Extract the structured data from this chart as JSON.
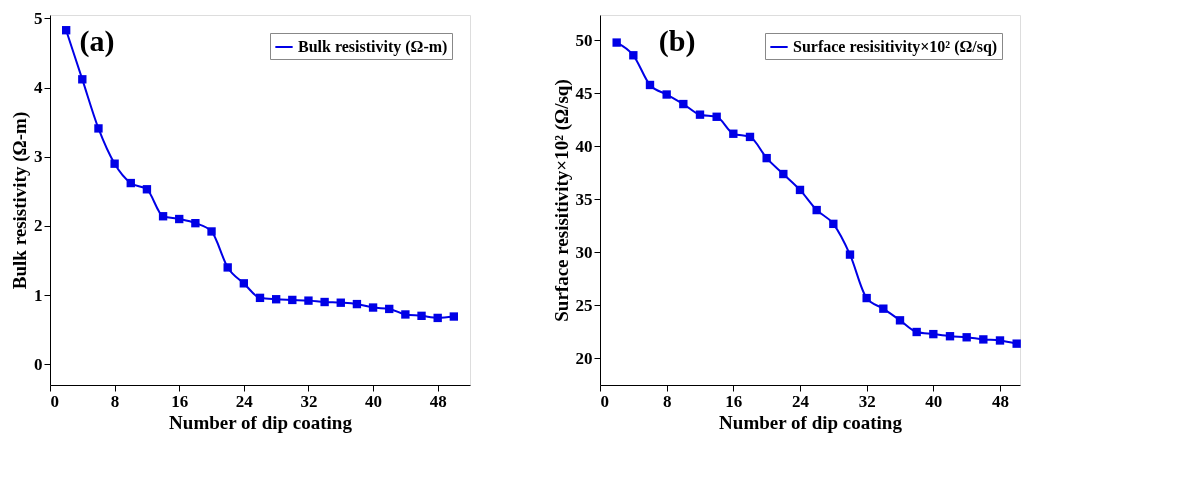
{
  "chart_data": [
    {
      "type": "line",
      "xlabel": "Number of dip coating",
      "ylabel": "Bulk resistivity (Ω-m)",
      "annotations": [
        "(a)"
      ],
      "x": [
        2,
        4,
        6,
        8,
        10,
        12,
        14,
        16,
        18,
        20,
        22,
        24,
        26,
        28,
        30,
        32,
        34,
        36,
        38,
        40,
        42,
        44,
        46,
        48,
        50
      ],
      "series": [
        {
          "name": "Bulk resistivity (Ω-m)",
          "color": "#0000e6",
          "values": [
            4.83,
            4.12,
            3.41,
            2.9,
            2.62,
            2.53,
            2.14,
            2.1,
            2.04,
            1.92,
            1.4,
            1.17,
            0.96,
            0.94,
            0.93,
            0.92,
            0.9,
            0.89,
            0.87,
            0.82,
            0.8,
            0.72,
            0.7,
            0.67,
            0.69
          ]
        }
      ],
      "xlim": [
        0,
        52
      ],
      "xticks": [
        0,
        8,
        16,
        24,
        32,
        40,
        48
      ],
      "ylim": [
        -0.3,
        5.05
      ],
      "yticks": [
        0,
        1,
        2,
        3,
        4,
        5
      ],
      "grid": false,
      "legend": "top right",
      "marker": "square",
      "line_style": "solid"
    },
    {
      "type": "line",
      "xlabel": "Number of dip coating",
      "ylabel": "Surface resisitivity×10² (Ω/sq)",
      "annotations": [
        "(b)"
      ],
      "x": [
        2,
        4,
        6,
        8,
        10,
        12,
        14,
        16,
        18,
        20,
        22,
        24,
        26,
        28,
        30,
        32,
        34,
        36,
        38,
        40,
        42,
        44,
        46,
        48,
        50
      ],
      "series": [
        {
          "name": "Surface resisitivity×10² (Ω/sq)",
          "color": "#0000e6",
          "values": [
            49.8,
            48.6,
            45.8,
            44.9,
            44.0,
            43.0,
            42.8,
            41.2,
            40.9,
            38.9,
            37.4,
            35.9,
            34.0,
            32.7,
            29.8,
            25.7,
            24.7,
            23.6,
            22.5,
            22.3,
            22.1,
            22.0,
            21.8,
            21.7,
            21.4
          ]
        }
      ],
      "xlim": [
        0,
        50.4
      ],
      "xticks": [
        0,
        8,
        16,
        24,
        32,
        40,
        48
      ],
      "ylim": [
        17.5,
        52.4
      ],
      "yticks": [
        20,
        25,
        30,
        35,
        40,
        45,
        50
      ],
      "grid": false,
      "legend": "top right",
      "marker": "square",
      "line_style": "solid"
    }
  ]
}
